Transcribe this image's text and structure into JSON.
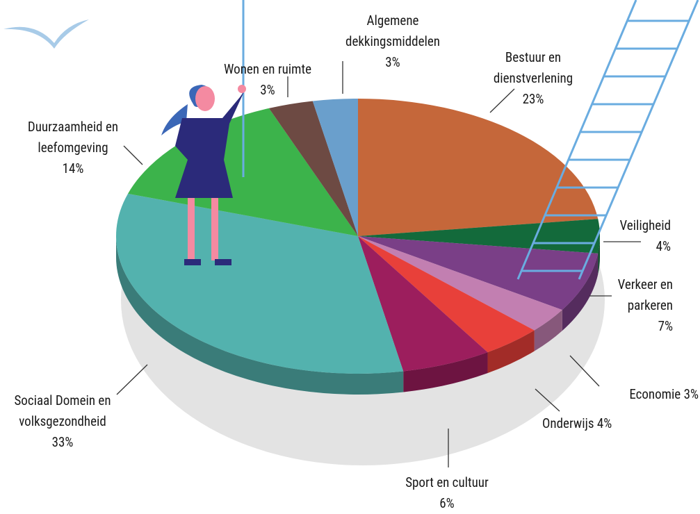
{
  "chart_data": {
    "type": "pie3d",
    "categories": [
      "Bestuur en dienstverlening",
      "Veiligheid",
      "Verkeer en parkeren",
      "Economie",
      "Onderwijs",
      "Sport en cultuur",
      "Sociaal Domein en volksgezondheid",
      "Duurzaamheid en leefomgeving",
      "Wonen en ruimte",
      "Algemene dekkingsmiddelen"
    ],
    "values": [
      23,
      4,
      7,
      3,
      4,
      6,
      33,
      14,
      3,
      3
    ],
    "value_labels": [
      "23%",
      "4%",
      "7%",
      "3%",
      "4%",
      "6%",
      "33%",
      "14%",
      "3%",
      "3%"
    ],
    "colors": [
      "#c5673a",
      "#136a3b",
      "#7a3f87",
      "#c27fb1",
      "#e8403a",
      "#9c1e5d",
      "#53b2ae",
      "#3cb34b",
      "#6d4a43",
      "#6a9fcc"
    ]
  }
}
